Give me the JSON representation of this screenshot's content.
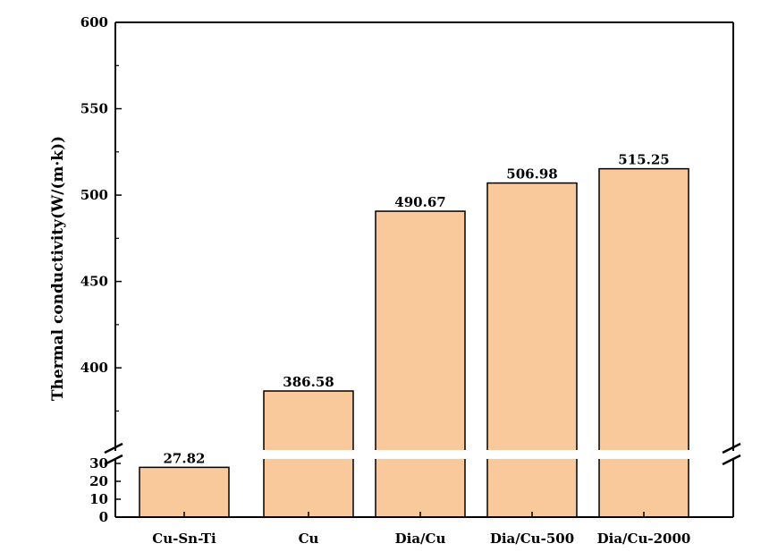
{
  "chart_data": {
    "type": "bar",
    "categories": [
      "Cu-Sn-Ti",
      "Cu",
      "Dia/Cu",
      "Dia/Cu-500",
      "Dia/Cu-2000"
    ],
    "values": [
      27.82,
      386.58,
      490.67,
      506.98,
      515.25
    ],
    "data_labels": [
      "27.82",
      "386.58",
      "490.67",
      "506.98",
      "515.25"
    ],
    "title": "",
    "xlabel": "",
    "ylabel": "Thermal conductivity(W/(m·k))",
    "axis_break": {
      "lower_range": [
        0,
        30
      ],
      "upper_range": [
        355,
        600
      ]
    },
    "yticks_upper": [
      "400",
      "450",
      "500",
      "550",
      "600"
    ],
    "yticks_lower": [
      "0",
      "10",
      "20",
      "30"
    ],
    "bar_color": "#f9c89b",
    "edge_color": "#000000",
    "grid": false,
    "legend": "none"
  }
}
